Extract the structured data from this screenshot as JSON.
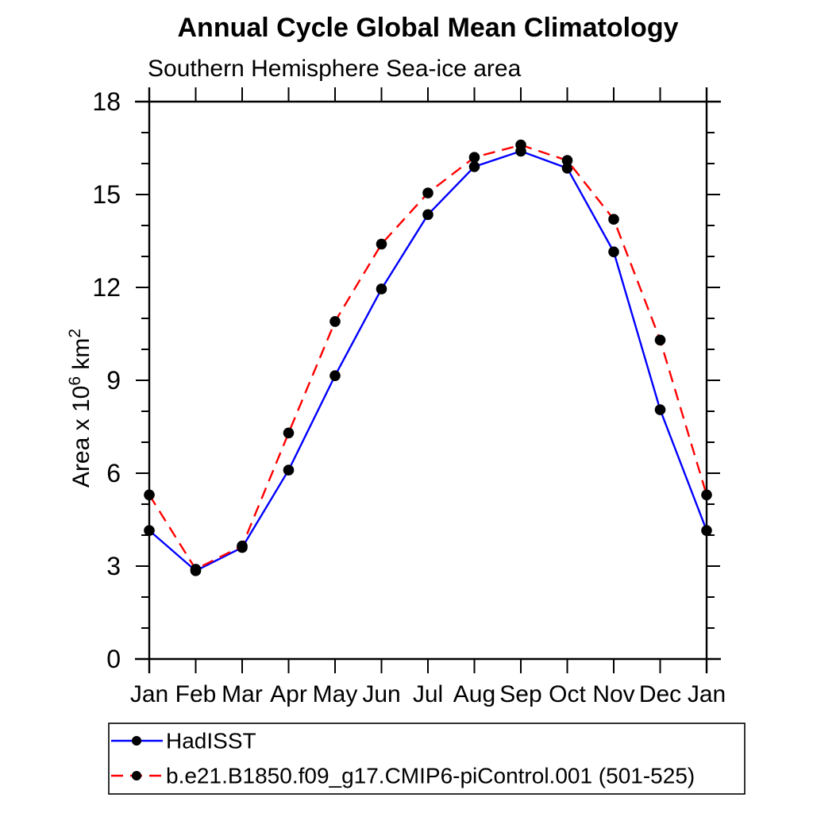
{
  "title": "Annual Cycle Global Mean Climatology",
  "subtitle": "Southern Hemisphere Sea-ice area",
  "chart_data": {
    "type": "line",
    "categories": [
      "Jan",
      "Feb",
      "Mar",
      "Apr",
      "May",
      "Jun",
      "Jul",
      "Aug",
      "Sep",
      "Oct",
      "Nov",
      "Dec",
      "Jan"
    ],
    "series": [
      {
        "name": "HadISST",
        "color": "#0000ff",
        "line_style": "solid",
        "marker": "filled-circle",
        "marker_color": "#000000",
        "values": [
          4.15,
          2.85,
          3.6,
          6.1,
          9.15,
          11.95,
          14.35,
          15.9,
          16.4,
          15.85,
          13.15,
          8.05,
          4.15
        ]
      },
      {
        "name": "b.e21.B1850.f09_g17.CMIP6-piControl.001 (501-525)",
        "color": "#ff0000",
        "line_style": "dashed",
        "marker": "filled-circle",
        "marker_color": "#000000",
        "values": [
          5.3,
          2.9,
          3.65,
          7.3,
          10.9,
          13.4,
          15.05,
          16.2,
          16.6,
          16.1,
          14.2,
          10.3,
          5.3
        ]
      }
    ],
    "title": "Annual Cycle Global Mean Climatology",
    "subtitle": "Southern Hemisphere Sea-ice area",
    "xlabel": "",
    "ylabel": "Area x 10^6 km^2",
    "ylabel_parts": [
      {
        "text": "Area x 10",
        "superscript": false
      },
      {
        "text": "6",
        "superscript": true
      },
      {
        "text": " km",
        "superscript": false
      },
      {
        "text": "2",
        "superscript": true
      }
    ],
    "ylim": [
      0,
      18
    ],
    "y_major_step": 3,
    "y_minor_step": 1,
    "y_tick_labels": [
      "0",
      "3",
      "6",
      "9",
      "12",
      "15",
      "18"
    ],
    "grid": false,
    "legend_position": "bottom-left",
    "axis_color": "#000000"
  }
}
